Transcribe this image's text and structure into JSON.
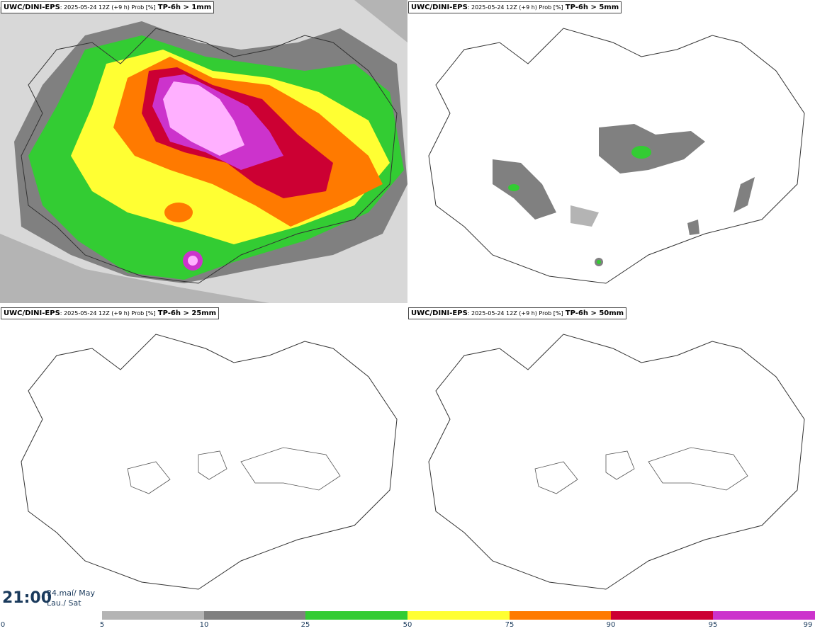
{
  "panels": [
    {
      "model": "UWC/DINI-EPS",
      "meta": ": 2025-05-24 12Z (+9 h) Prob [%]",
      "threshold": "TP-6h > 1mm"
    },
    {
      "model": "UWC/DINI-EPS",
      "meta": ": 2025-05-24 12Z (+9 h) Prob [%]",
      "threshold": "TP-6h > 5mm"
    },
    {
      "model": "UWC/DINI-EPS",
      "meta": ": 2025-05-24 12Z (+9 h) Prob [%]",
      "threshold": "TP-6h > 25mm"
    },
    {
      "model": "UWC/DINI-EPS",
      "meta": ": 2025-05-24 12Z (+9 h) Prob [%]",
      "threshold": "TP-6h > 50mm"
    }
  ],
  "footer": {
    "time": "21:00",
    "date_line1": "24.maí/ May",
    "date_line2": "Lau./ Sat"
  },
  "legend": {
    "ticks": [
      "0",
      "5",
      "10",
      "25",
      "50",
      "75",
      "90",
      "95",
      "99"
    ],
    "colors": [
      "#ffffff",
      "#b4b4b4",
      "#808080",
      "#33cc33",
      "#ffff33",
      "#ff7a00",
      "#cc0033",
      "#cc33cc",
      "#ffb0ff"
    ]
  }
}
